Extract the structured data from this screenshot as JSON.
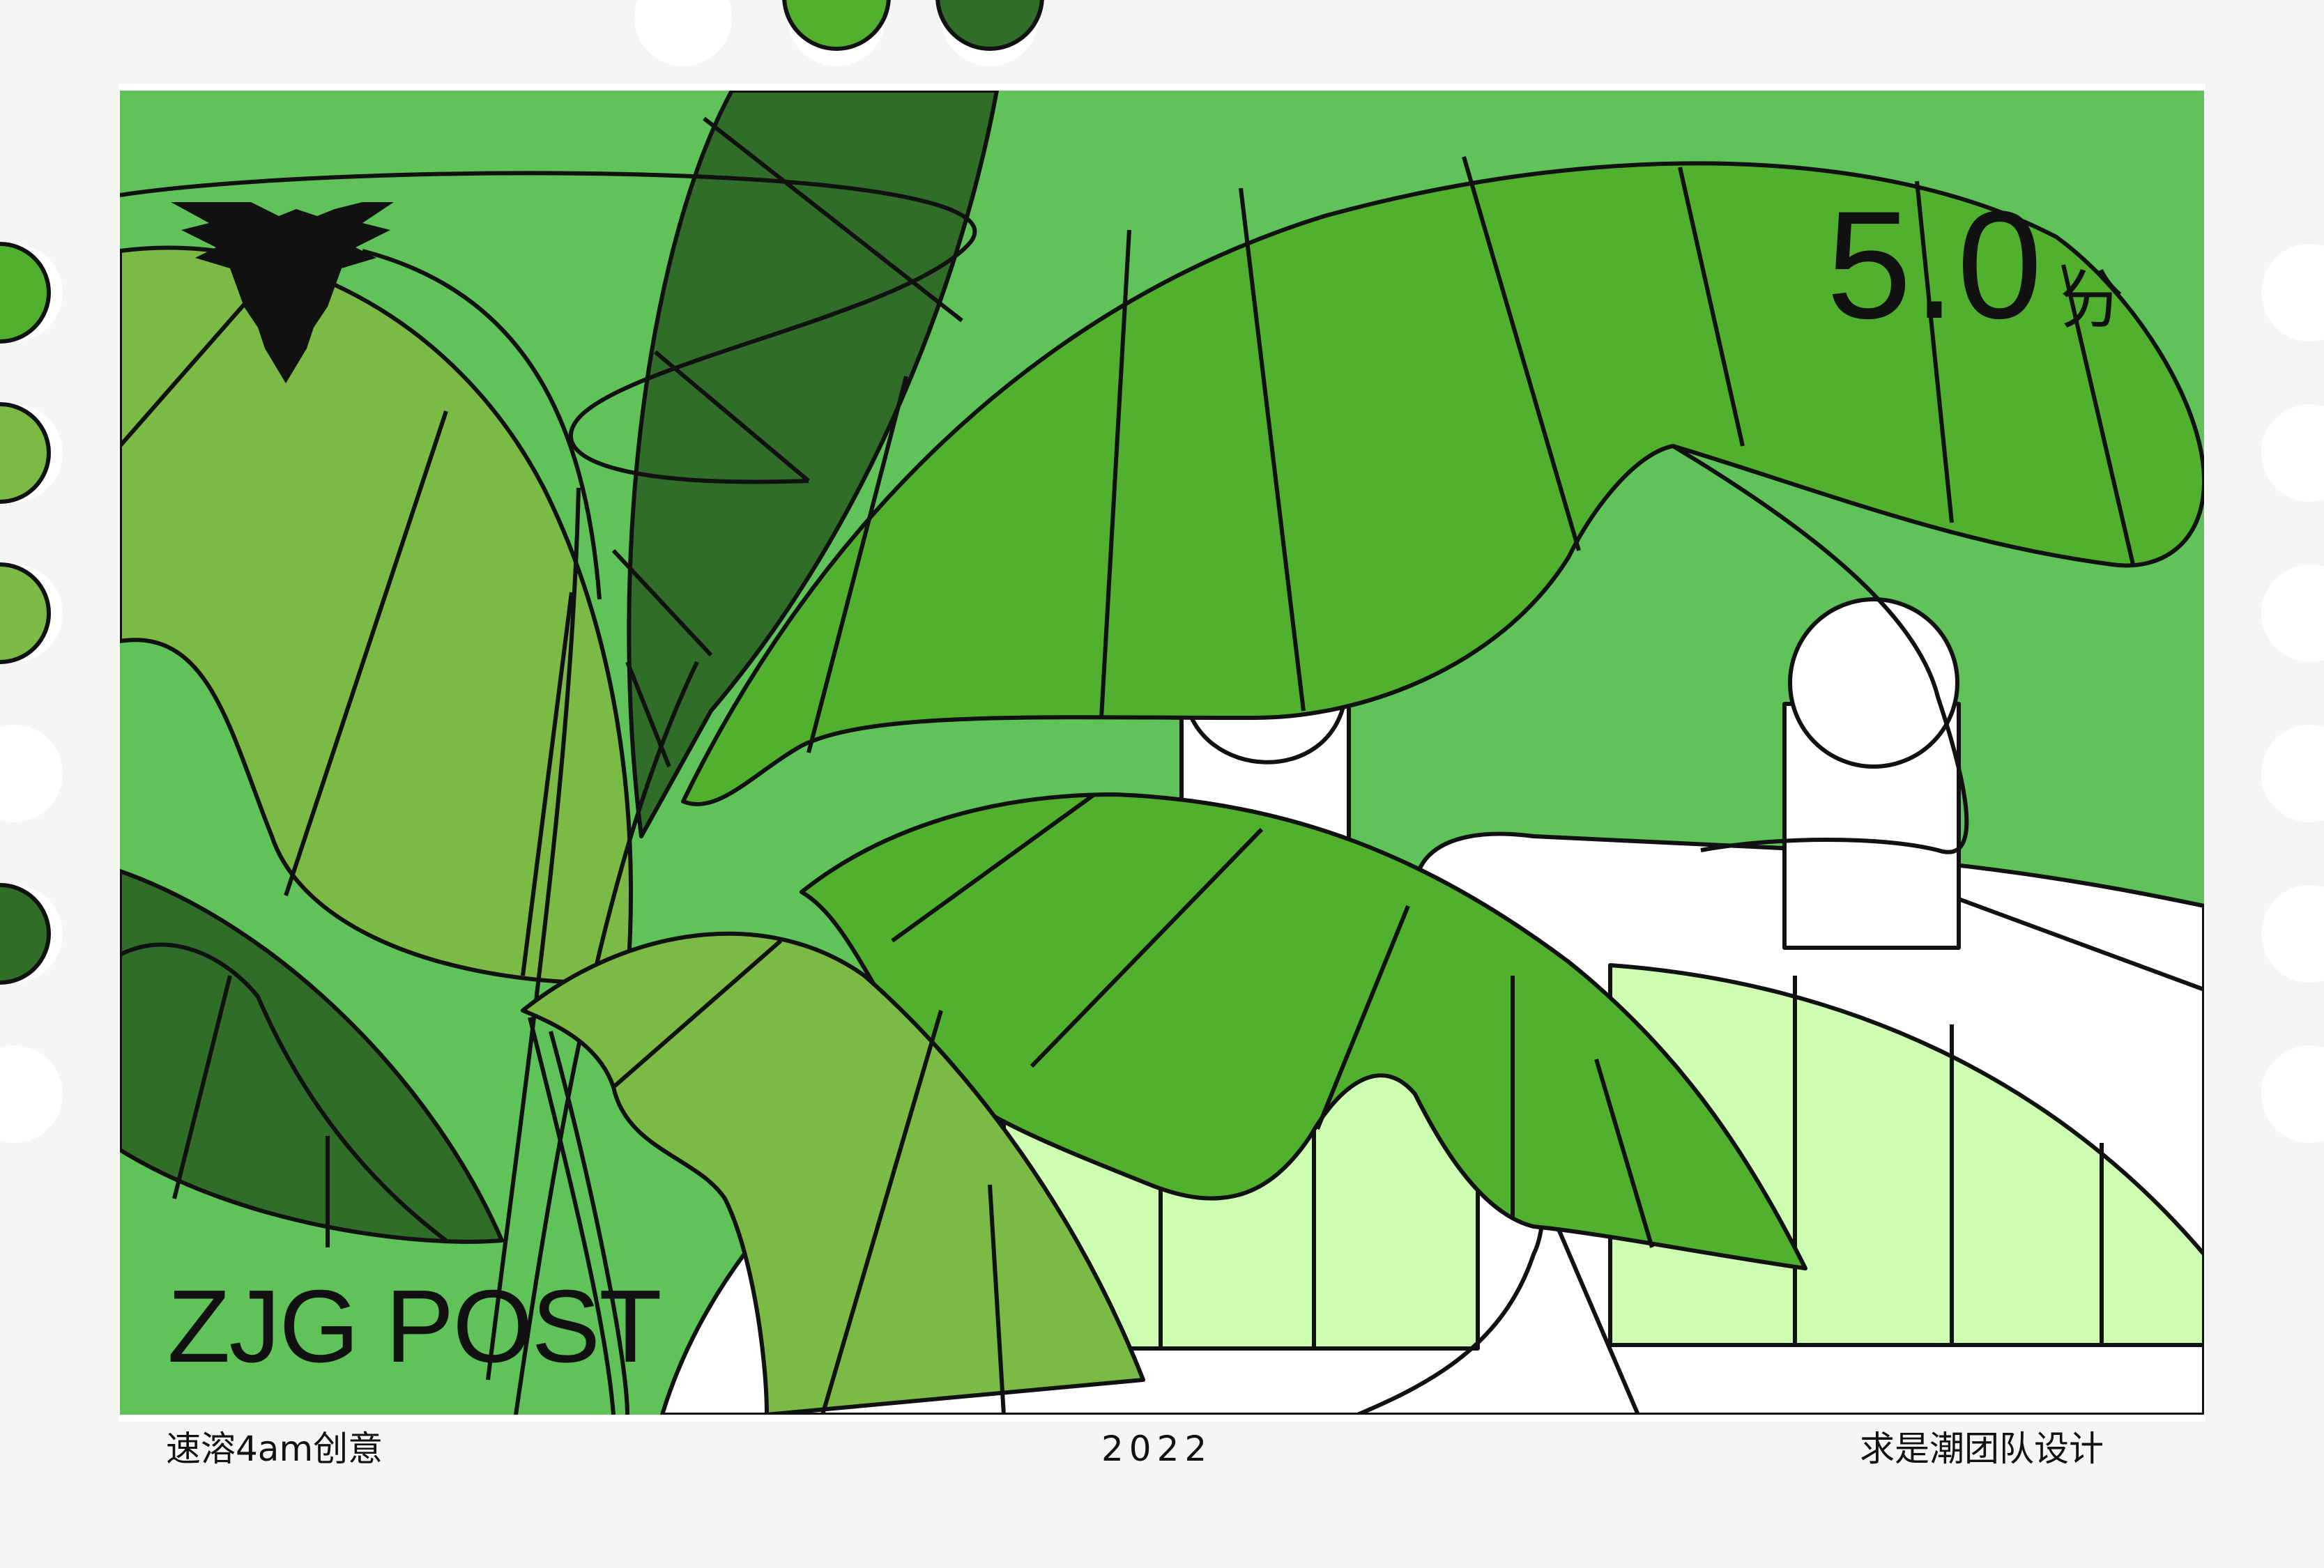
{
  "stamp": {
    "denomination_value": "5.0",
    "denomination_unit": "分",
    "brand": "ZJG POST",
    "footer_left": "速溶4am创意",
    "footer_year": "2022",
    "footer_right": "求是潮团队设计"
  },
  "logo": {
    "name": "eagle-emblem"
  },
  "colors": {
    "paper": "#ffffff",
    "frame": "#f7f9f7",
    "background_green": "#60c35a",
    "leaf_mid": "#52b02f",
    "leaf_light": "#7aba45",
    "leaf_dark": "#306d28",
    "pale_green": "#cdfeb2",
    "outline": "#111111"
  }
}
